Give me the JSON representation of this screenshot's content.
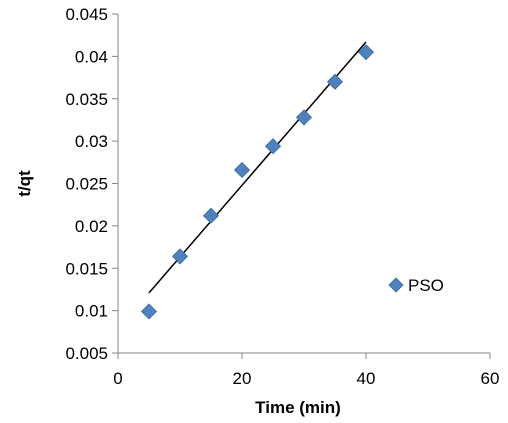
{
  "chart_data": {
    "type": "scatter",
    "title": "",
    "xlabel": "Time (min)",
    "ylabel": "t/qt",
    "xlim": [
      0,
      60
    ],
    "ylim": [
      0.005,
      0.045
    ],
    "xticks": [
      "0",
      "20",
      "40",
      "60"
    ],
    "yticks": [
      "0.005",
      "0.01",
      "0.015",
      "0.02",
      "0.025",
      "0.03",
      "0.035",
      "0.04",
      "0.045"
    ],
    "grid": false,
    "legend_position": "right",
    "series": [
      {
        "name": "PSO",
        "color": "#4F81BD",
        "marker": "diamond",
        "x": [
          5,
          10,
          15,
          20,
          25,
          30,
          35,
          40
        ],
        "y": [
          0.0099,
          0.0164,
          0.0212,
          0.0266,
          0.0294,
          0.0328,
          0.037,
          0.0405
        ]
      }
    ],
    "trendline": {
      "type": "linear",
      "color": "#000000",
      "x": [
        5,
        40
      ],
      "y": [
        0.0121,
        0.0417
      ]
    }
  }
}
